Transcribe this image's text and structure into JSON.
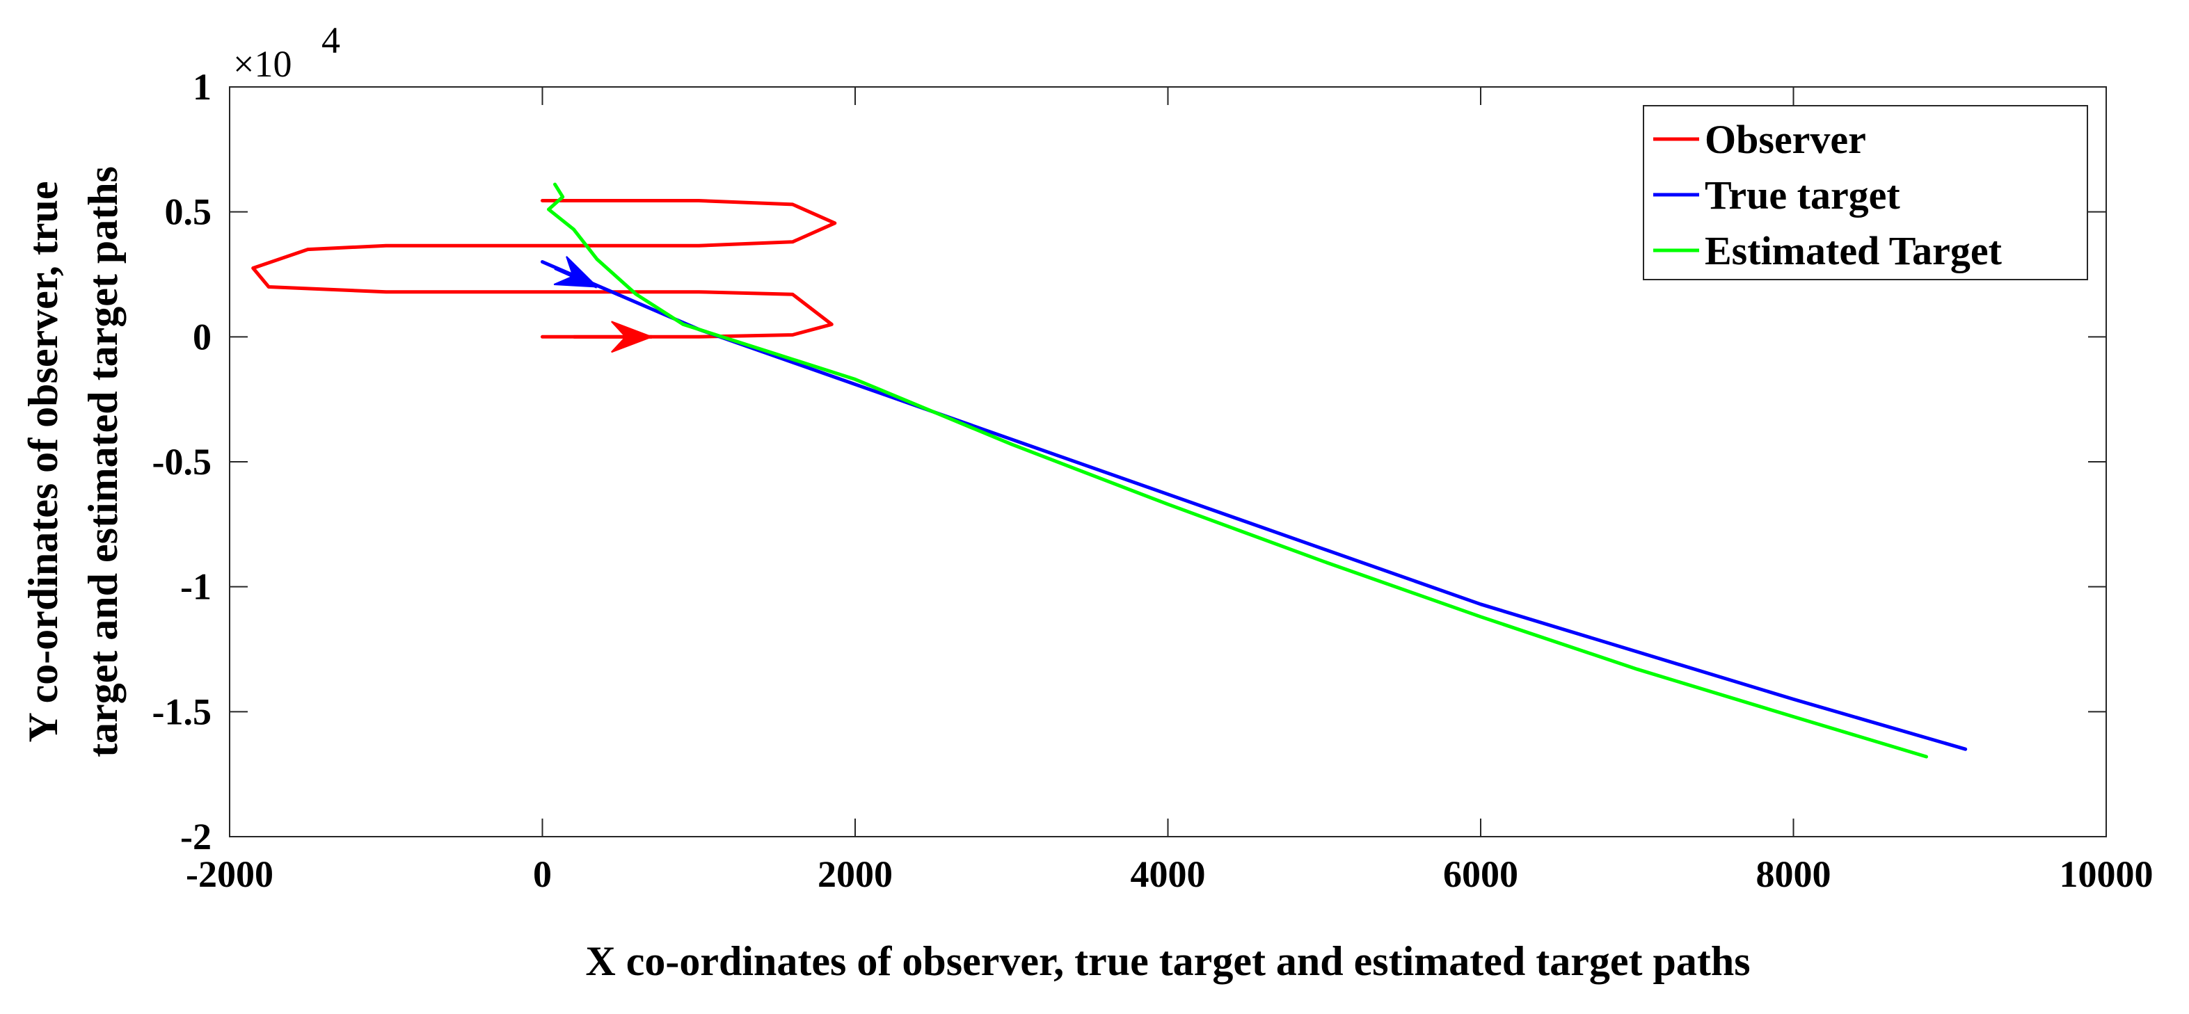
{
  "chart_data": {
    "type": "line",
    "title": "",
    "xlabel": "X co-ordinates of observer, true target and estimated target paths",
    "ylabel_lines": [
      "Y co-ordinates of observer, true",
      "target and estimated target paths"
    ],
    "xlim": [
      -2000,
      10000
    ],
    "ylim": [
      -20000,
      10000
    ],
    "y_exponent_label": "×10",
    "y_exponent_power": "4",
    "y_scale": 10000,
    "xticks": [
      -2000,
      0,
      2000,
      4000,
      6000,
      8000,
      10000
    ],
    "xtick_labels": [
      "-2000",
      "0",
      "2000",
      "4000",
      "6000",
      "8000",
      "10000"
    ],
    "yticks": [
      -20000,
      -15000,
      -10000,
      -5000,
      0,
      5000,
      10000
    ],
    "ytick_labels": [
      "-2",
      "-1.5",
      "-1",
      "-0.5",
      "0",
      "0.5",
      "1"
    ],
    "grid": false,
    "legend_position": "top-right",
    "series": [
      {
        "name": "Observer",
        "color": "#ff0000",
        "points": [
          [
            0,
            0
          ],
          [
            1000,
            0
          ],
          [
            1600,
            80
          ],
          [
            1850,
            500
          ],
          [
            1600,
            1700
          ],
          [
            1000,
            1800
          ],
          [
            0,
            1800
          ],
          [
            -1000,
            1800
          ],
          [
            -1750,
            2000
          ],
          [
            -1850,
            2750
          ],
          [
            -1500,
            3500
          ],
          [
            -1000,
            3650
          ],
          [
            0,
            3650
          ],
          [
            1000,
            3650
          ],
          [
            1600,
            3800
          ],
          [
            1870,
            4550
          ],
          [
            1600,
            5300
          ],
          [
            1000,
            5450
          ],
          [
            0,
            5450
          ]
        ],
        "arrow": {
          "from": [
            200,
            0
          ],
          "to": [
            700,
            0
          ]
        }
      },
      {
        "name": "True target",
        "color": "#0000ff",
        "points": [
          [
            0,
            3000
          ],
          [
            1000,
            300
          ],
          [
            2000,
            -1900
          ],
          [
            3000,
            -4100
          ],
          [
            4000,
            -6300
          ],
          [
            5000,
            -8500
          ],
          [
            6000,
            -10700
          ],
          [
            7000,
            -12600
          ],
          [
            8000,
            -14500
          ],
          [
            9100,
            -16500
          ]
        ],
        "arrow": {
          "from": [
            80,
            2750
          ],
          "to": [
            350,
            2000
          ]
        }
      },
      {
        "name": "Estimated Target",
        "color": "#00ff00",
        "points": [
          [
            80,
            6100
          ],
          [
            130,
            5600
          ],
          [
            40,
            5100
          ],
          [
            200,
            4300
          ],
          [
            350,
            3100
          ],
          [
            600,
            1700
          ],
          [
            900,
            500
          ],
          [
            1300,
            -300
          ],
          [
            2000,
            -1700
          ],
          [
            3000,
            -4300
          ],
          [
            4000,
            -6700
          ],
          [
            5000,
            -9000
          ],
          [
            6000,
            -11200
          ],
          [
            7000,
            -13300
          ],
          [
            8000,
            -15200
          ],
          [
            8850,
            -16800
          ]
        ]
      }
    ]
  }
}
